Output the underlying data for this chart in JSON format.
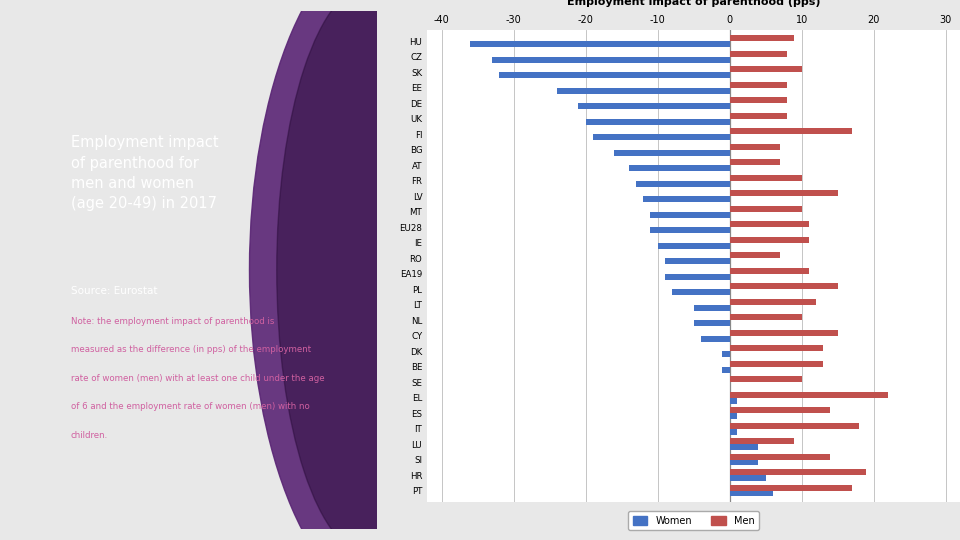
{
  "title": "Employment impact of parenthood (pps)",
  "countries": [
    "HU",
    "CZ",
    "SK",
    "EE",
    "DE",
    "UK",
    "FI",
    "BG",
    "AT",
    "FR",
    "LV",
    "MT",
    "EU28",
    "IE",
    "RO",
    "EA19",
    "PL",
    "LT",
    "NL",
    "CY",
    "DK",
    "BE",
    "SE",
    "EL",
    "ES",
    "IT",
    "LU",
    "SI",
    "HR",
    "PT"
  ],
  "women": [
    -36,
    -33,
    -32,
    -24,
    -21,
    -20,
    -19,
    -16,
    -14,
    -13,
    -12,
    -11,
    -11,
    -10,
    -9,
    -9,
    -8,
    -5,
    -5,
    -4,
    -1,
    -1,
    0,
    1,
    1,
    1,
    4,
    4,
    5,
    6
  ],
  "men": [
    9,
    8,
    10,
    8,
    8,
    8,
    17,
    7,
    7,
    10,
    15,
    10,
    11,
    11,
    7,
    11,
    15,
    12,
    10,
    15,
    13,
    13,
    10,
    22,
    14,
    18,
    9,
    14,
    19,
    17
  ],
  "women_color": "#4472c4",
  "men_color": "#c0504d",
  "xlim": [
    -42,
    32
  ],
  "xticks": [
    -40,
    -30,
    -20,
    -10,
    0,
    10,
    20,
    30
  ],
  "fig_bg": "#e8e8e8",
  "chart_bg": "#ffffff",
  "left_panel_bg": "#3d1454",
  "left_panel_mid": "#5a2575",
  "right_accent_color": "#9e1060",
  "title_text_left": "Employment impact\nof parenthood for\nmen and women\n(age 20-49) in 2017",
  "source_text": "Source: Eurostat",
  "note_text_lines": [
    "Note: the employment impact of parenthood is",
    "measured as the difference (in pps) of the employment",
    "rate of women (men) with at least one child under the age",
    "of 6 and the employment rate of women (men) with no",
    "children."
  ],
  "title_color": "#ffffff",
  "source_color": "#ffffff",
  "note_color": "#d060a0"
}
